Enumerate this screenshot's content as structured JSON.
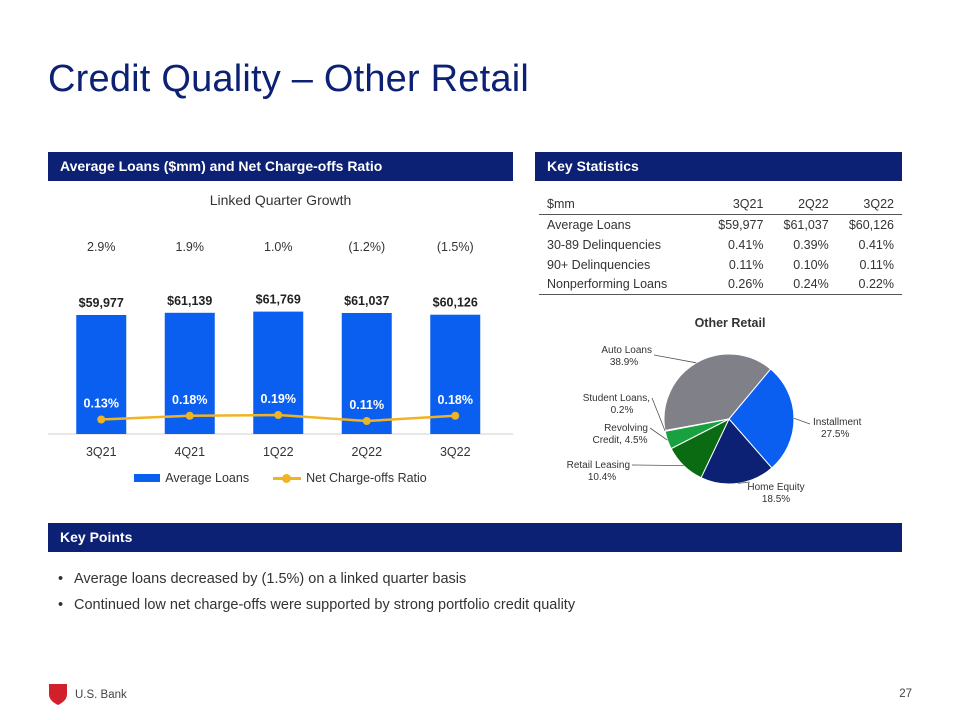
{
  "page": {
    "title": "Credit Quality – Other Retail",
    "page_number": "27",
    "brand": "U.S. Bank"
  },
  "sections": {
    "loans_header": "Average Loans ($mm) and Net Charge-offs Ratio",
    "stats_header": "Key Statistics",
    "points_header": "Key Points"
  },
  "growth_title": "Linked Quarter Growth",
  "legend": {
    "bar": "Average Loans",
    "line": "Net Charge-offs Ratio"
  },
  "key_stats": {
    "columns": [
      "$mm",
      "3Q21",
      "2Q22",
      "3Q22"
    ],
    "rows": [
      [
        "Average Loans",
        "$59,977",
        "$61,037",
        "$60,126"
      ],
      [
        "30-89 Delinquencies",
        "0.41%",
        "0.39%",
        "0.41%"
      ],
      [
        "90+ Delinquencies",
        "0.11%",
        "0.10%",
        "0.11%"
      ],
      [
        "Nonperforming Loans",
        "0.26%",
        "0.24%",
        "0.22%"
      ]
    ]
  },
  "key_points": [
    "Average loans decreased by (1.5%) on a linked quarter basis",
    "Continued low net charge-offs were supported by strong portfolio credit quality"
  ],
  "colors": {
    "navy": "#0c2074",
    "bar_blue": "#0a5ff0",
    "line_gold": "#f0b323"
  },
  "chart_data": [
    {
      "type": "bar",
      "categories": [
        "3Q21",
        "4Q21",
        "1Q22",
        "2Q22",
        "3Q22"
      ],
      "series": [
        {
          "name": "Average Loans",
          "values": [
            59977,
            61139,
            61769,
            61037,
            60126
          ],
          "labels": [
            "$59,977",
            "$61,139",
            "$61,769",
            "$61,037",
            "$60,126"
          ],
          "color": "#0a5ff0"
        },
        {
          "name": "Net Charge-offs Ratio",
          "type": "line",
          "values": [
            0.13,
            0.18,
            0.19,
            0.11,
            0.18
          ],
          "labels": [
            "0.13%",
            "0.18%",
            "0.19%",
            "0.11%",
            "0.18%"
          ],
          "color": "#f0b323"
        }
      ],
      "growth_labels": [
        "2.9%",
        "1.9%",
        "1.0%",
        "(1.2%)",
        "(1.5%)"
      ],
      "title": "",
      "xlabel": "",
      "ylabel": "",
      "legend": "bottom",
      "grid": false
    },
    {
      "type": "pie",
      "title": "Other Retail",
      "slices": [
        {
          "label": "Auto Loans",
          "value": 38.9,
          "text": [
            "Auto Loans",
            "38.9%"
          ],
          "color": "#808188"
        },
        {
          "label": "Installment",
          "value": 27.5,
          "text": [
            "Installment",
            "27.5%"
          ],
          "color": "#0a5ff0"
        },
        {
          "label": "Home Equity",
          "value": 18.5,
          "text": [
            "Home Equity",
            "18.5%"
          ],
          "color": "#0c2074"
        },
        {
          "label": "Retail Leasing",
          "value": 10.4,
          "text": [
            "Retail Leasing",
            "10.4%"
          ],
          "color": "#0a6b12"
        },
        {
          "label": "Revolving Credit",
          "value": 4.5,
          "text": [
            "Revolving",
            "Credit, 4.5%"
          ],
          "color": "#1aa13f"
        },
        {
          "label": "Student Loans",
          "value": 0.2,
          "text": [
            "Student Loans,",
            "0.2%"
          ],
          "color": "#5a9e8f"
        }
      ]
    }
  ]
}
